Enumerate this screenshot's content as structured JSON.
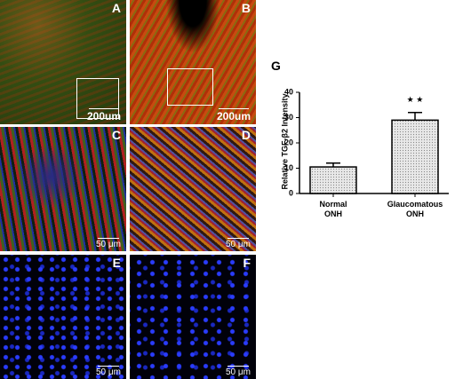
{
  "panels": [
    {
      "label": "A",
      "scale_bar": "200um"
    },
    {
      "label": "B",
      "scale_bar": "200um"
    },
    {
      "label": "C",
      "scale_bar": "50 μm"
    },
    {
      "label": "D",
      "scale_bar": "50 μm"
    },
    {
      "label": "E",
      "scale_bar": "50 μm"
    },
    {
      "label": "F",
      "scale_bar": "50 μm"
    }
  ],
  "chart_data": {
    "type": "bar",
    "panel_label": "G",
    "y_label": "Relative TGF-β2 Intensity",
    "categories": [
      "Normal ONH",
      "Glaucomatous ONH"
    ],
    "values": [
      10.5,
      29
    ],
    "errors": [
      1.5,
      3
    ],
    "annotation": "★ ★",
    "ylim": [
      0,
      40
    ],
    "yticks": [
      0,
      10,
      20,
      30,
      40
    ],
    "color": "#d9d9d9"
  }
}
